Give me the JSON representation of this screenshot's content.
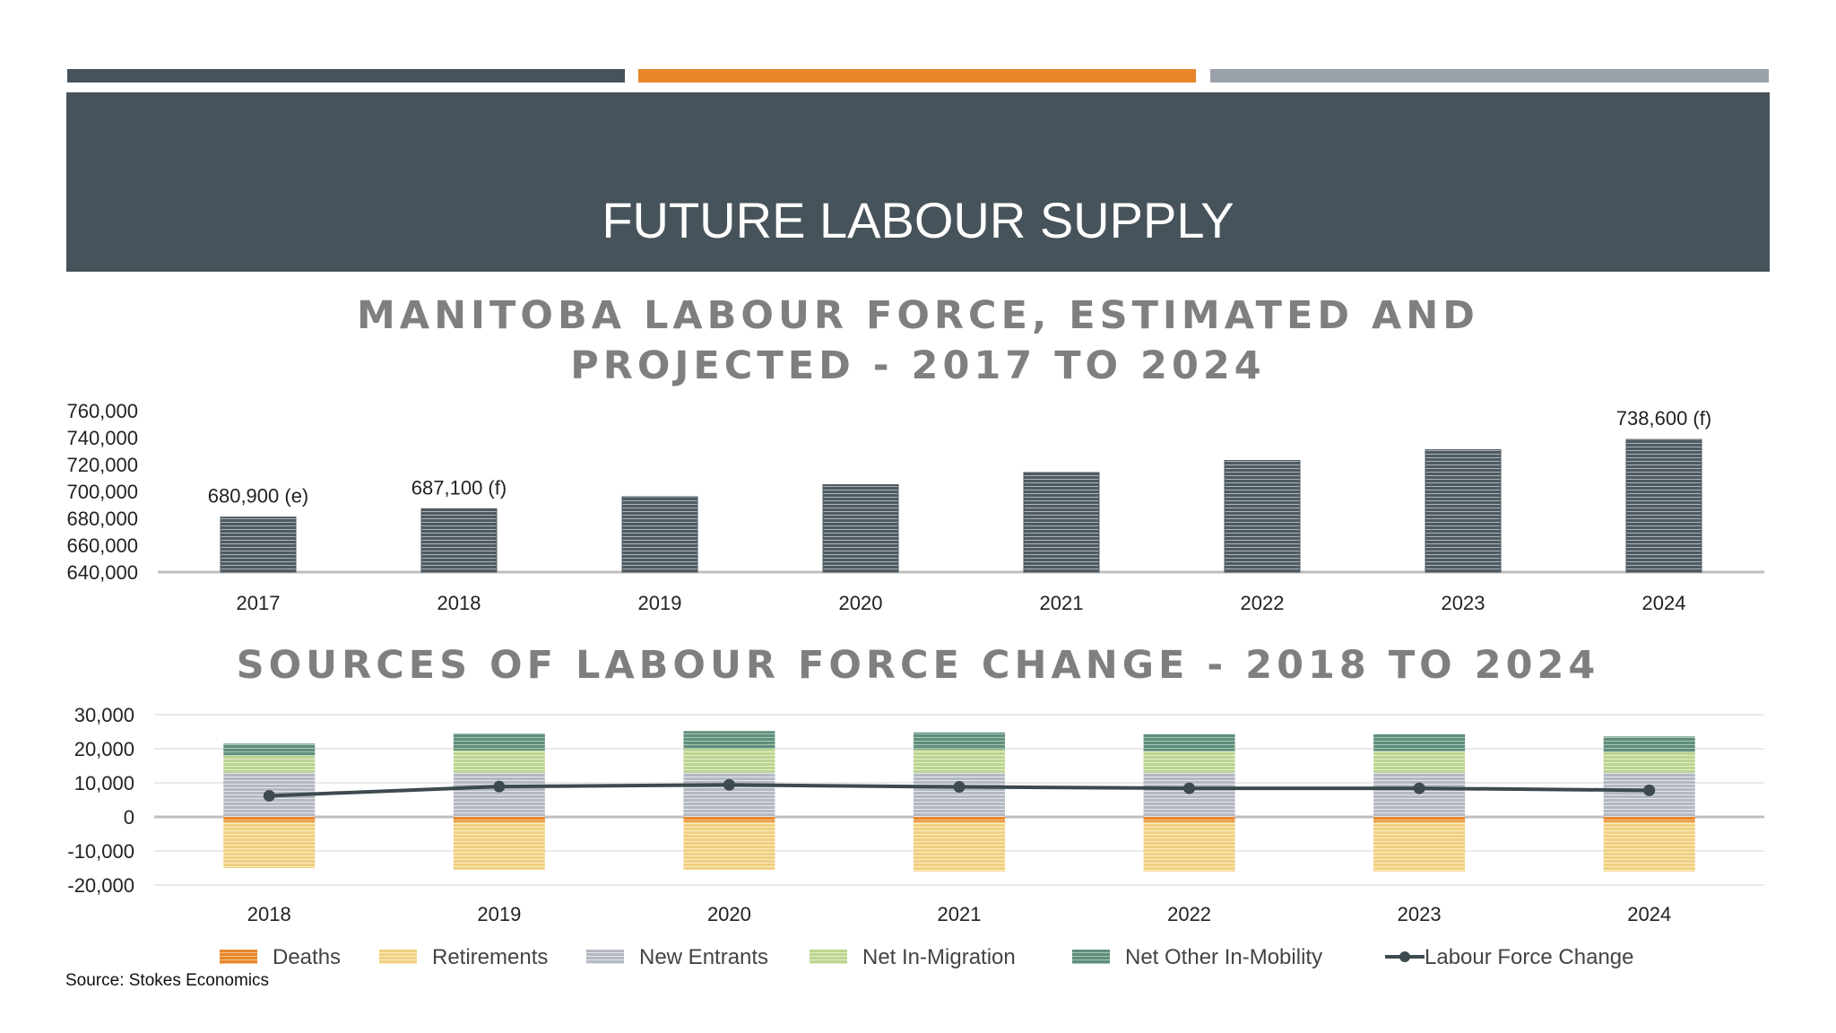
{
  "slide": {
    "title": "FUTURE LABOUR SUPPLY",
    "source": "Source: Stokes Economics",
    "accent_colors": [
      "#47535b",
      "#e8862a",
      "#9aa1a8"
    ]
  },
  "chart_data": [
    {
      "type": "bar",
      "title": "MANITOBA LABOUR FORCE, ESTIMATED AND PROJECTED - 2017 TO 2024",
      "title_lines": [
        "MANITOBA LABOUR FORCE, ESTIMATED AND",
        "PROJECTED - 2017 TO 2024"
      ],
      "categories": [
        "2017",
        "2018",
        "2019",
        "2020",
        "2021",
        "2022",
        "2023",
        "2024"
      ],
      "values": [
        680900,
        687100,
        696000,
        705000,
        714000,
        723000,
        731000,
        738600
      ],
      "data_labels": [
        "680,900 (e)",
        "687,100 (f)",
        "",
        "",
        "",
        "",
        "",
        "738,600 (f)"
      ],
      "ylim": [
        640000,
        760000
      ],
      "yticks": [
        640000,
        660000,
        680000,
        700000,
        720000,
        740000,
        760000
      ],
      "ytick_labels": [
        "640,000",
        "660,000",
        "680,000",
        "700,000",
        "720,000",
        "740,000",
        "760,000"
      ],
      "bar_color": "#5b6770",
      "grid": false
    },
    {
      "type": "bar",
      "stacked": true,
      "title": "SOURCES OF LABOUR FORCE CHANGE - 2018 TO 2024",
      "categories": [
        "2018",
        "2019",
        "2020",
        "2021",
        "2022",
        "2023",
        "2024"
      ],
      "series": [
        {
          "name": "Deaths",
          "color": "#e8862a",
          "values": [
            -1500,
            -1500,
            -1500,
            -1500,
            -1500,
            -1500,
            -1500
          ]
        },
        {
          "name": "Retirements",
          "color": "#f3d488",
          "values": [
            -13500,
            -14000,
            -14000,
            -14500,
            -14500,
            -14500,
            -14500
          ]
        },
        {
          "name": "New Entrants",
          "color": "#b9bec6",
          "values": [
            13000,
            13000,
            13000,
            13000,
            13000,
            13000,
            13000
          ]
        },
        {
          "name": "Net In-Migration",
          "color": "#c3da9a",
          "values": [
            5000,
            6500,
            7000,
            6800,
            6300,
            6300,
            6000
          ]
        },
        {
          "name": "Net Other In-Mobility",
          "color": "#6b9a85",
          "values": [
            3500,
            5000,
            5200,
            5000,
            5000,
            5000,
            4600
          ]
        },
        {
          "name": "Labour Force Change",
          "type": "line",
          "color": "#3d4a4f",
          "values": [
            6200,
            8900,
            9400,
            8800,
            8400,
            8400,
            7800
          ]
        }
      ],
      "ylim": [
        -20000,
        30000
      ],
      "yticks": [
        -20000,
        -10000,
        0,
        10000,
        20000,
        30000
      ],
      "ytick_labels": [
        "-20,000",
        "-10,000",
        "0",
        "10,000",
        "20,000",
        "30,000"
      ],
      "grid": true,
      "legend_position": "bottom"
    }
  ]
}
